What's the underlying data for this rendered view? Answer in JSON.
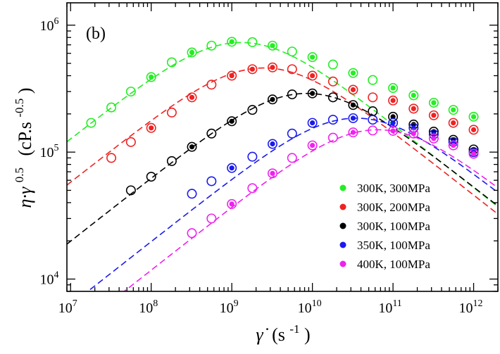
{
  "chart_data": {
    "type": "scatter",
    "title": "",
    "panel_label": "(b)",
    "xlabel": {
      "symbol": "γ̇",
      "unit_open": "(s",
      "unit_exp": "-1",
      "unit_close": ")"
    },
    "ylabel": {
      "symbol": "η·γ",
      "symbol_exp": "0.5",
      "unit_open": "(cP.s",
      "unit_exp": "-0.5",
      "unit_close": ")"
    },
    "x_scale": "log",
    "y_scale": "log",
    "xlim": [
      9000000,
      2000000000000
    ],
    "ylim": [
      8000,
      1500000
    ],
    "x_ticks": [
      {
        "base": "10",
        "exp": "7",
        "value": 10000000
      },
      {
        "base": "10",
        "exp": "8",
        "value": 100000000
      },
      {
        "base": "10",
        "exp": "9",
        "value": 1000000000
      },
      {
        "base": "10",
        "exp": "10",
        "value": 10000000000
      },
      {
        "base": "10",
        "exp": "11",
        "value": 100000000000
      },
      {
        "base": "10",
        "exp": "12",
        "value": 1000000000000
      }
    ],
    "y_ticks": [
      {
        "base": "10",
        "exp": "4",
        "value": 10000
      },
      {
        "base": "10",
        "exp": "5",
        "value": 100000
      },
      {
        "base": "10",
        "exp": "6",
        "value": 1000000
      }
    ],
    "grid": false,
    "legend_position": "bottom-right",
    "series": [
      {
        "name": "300K, 300MPa",
        "color": "#22ee22",
        "curve_peak_x": 1300000000,
        "curve_peak_y": 730000,
        "curve_slope": 0.5,
        "points": [
          {
            "x": 18000000,
            "y": 170000,
            "filled": false
          },
          {
            "x": 32000000,
            "y": 225000,
            "filled": false
          },
          {
            "x": 56000000,
            "y": 300000,
            "filled": false
          },
          {
            "x": 100000000,
            "y": 390000,
            "filled": true
          },
          {
            "x": 180000000,
            "y": 510000,
            "filled": false
          },
          {
            "x": 320000000,
            "y": 610000,
            "filled": true
          },
          {
            "x": 560000000,
            "y": 690000,
            "filled": false
          },
          {
            "x": 1000000000,
            "y": 740000,
            "filled": true
          },
          {
            "x": 1800000000,
            "y": 735000,
            "filled": false
          },
          {
            "x": 3200000000,
            "y": 690000,
            "filled": true
          },
          {
            "x": 5600000000,
            "y": 620000,
            "filled": false
          },
          {
            "x": 10000000000,
            "y": 560000,
            "filled": true
          },
          {
            "x": 18000000000,
            "y": 490000,
            "filled": false
          },
          {
            "x": 32000000000,
            "y": 420000,
            "filled": true
          },
          {
            "x": 56000000000,
            "y": 370000,
            "filled": false
          },
          {
            "x": 100000000000,
            "y": 320000,
            "filled": true
          },
          {
            "x": 180000000000,
            "y": 280000,
            "filled": true
          },
          {
            "x": 320000000000,
            "y": 245000,
            "filled": true
          },
          {
            "x": 560000000000,
            "y": 215000,
            "filled": true
          },
          {
            "x": 1000000000000,
            "y": 190000,
            "filled": true
          }
        ]
      },
      {
        "name": "300K, 200MPa",
        "color": "#ee2222",
        "curve_peak_x": 2500000000,
        "curve_peak_y": 460000,
        "curve_slope": 0.5,
        "points": [
          {
            "x": 32000000,
            "y": 90000,
            "filled": false
          },
          {
            "x": 56000000,
            "y": 120000,
            "filled": false
          },
          {
            "x": 100000000,
            "y": 155000,
            "filled": true
          },
          {
            "x": 180000000,
            "y": 205000,
            "filled": false
          },
          {
            "x": 320000000,
            "y": 270000,
            "filled": true
          },
          {
            "x": 560000000,
            "y": 340000,
            "filled": false
          },
          {
            "x": 1000000000,
            "y": 400000,
            "filled": true
          },
          {
            "x": 1800000000,
            "y": 450000,
            "filled": true
          },
          {
            "x": 3200000000,
            "y": 465000,
            "filled": true
          },
          {
            "x": 5600000000,
            "y": 450000,
            "filled": false
          },
          {
            "x": 10000000000,
            "y": 400000,
            "filled": true
          },
          {
            "x": 18000000000,
            "y": 360000,
            "filled": false
          },
          {
            "x": 32000000000,
            "y": 310000,
            "filled": true
          },
          {
            "x": 56000000000,
            "y": 270000,
            "filled": false
          },
          {
            "x": 100000000000,
            "y": 255000,
            "filled": true
          },
          {
            "x": 180000000000,
            "y": 220000,
            "filled": true
          },
          {
            "x": 320000000000,
            "y": 195000,
            "filled": true
          },
          {
            "x": 560000000000,
            "y": 170000,
            "filled": true
          },
          {
            "x": 1000000000000,
            "y": 150000,
            "filled": true
          }
        ]
      },
      {
        "name": "300K, 100MPa",
        "color": "#000000",
        "curve_peak_x": 8500000000,
        "curve_peak_y": 290000,
        "curve_slope": 0.5,
        "points": [
          {
            "x": 56000000,
            "y": 50000,
            "filled": false
          },
          {
            "x": 100000000,
            "y": 64000,
            "filled": false
          },
          {
            "x": 180000000,
            "y": 85000,
            "filled": false
          },
          {
            "x": 320000000,
            "y": 110000,
            "filled": true
          },
          {
            "x": 560000000,
            "y": 140000,
            "filled": false
          },
          {
            "x": 1000000000,
            "y": 175000,
            "filled": true
          },
          {
            "x": 1800000000,
            "y": 215000,
            "filled": false
          },
          {
            "x": 3200000000,
            "y": 260000,
            "filled": true
          },
          {
            "x": 5600000000,
            "y": 285000,
            "filled": false
          },
          {
            "x": 10000000000,
            "y": 290000,
            "filled": true
          },
          {
            "x": 18000000000,
            "y": 270000,
            "filled": false
          },
          {
            "x": 32000000000,
            "y": 235000,
            "filled": true
          },
          {
            "x": 56000000000,
            "y": 210000,
            "filled": false
          },
          {
            "x": 100000000000,
            "y": 190000,
            "filled": true
          },
          {
            "x": 180000000000,
            "y": 165000,
            "filled": true
          },
          {
            "x": 320000000000,
            "y": 145000,
            "filled": true
          },
          {
            "x": 560000000000,
            "y": 125000,
            "filled": true
          },
          {
            "x": 1000000000000,
            "y": 105000,
            "filled": true
          }
        ]
      },
      {
        "name": "350K, 100MPa",
        "color": "#1a1aee",
        "curve_peak_x": 35000000000,
        "curve_peak_y": 185000,
        "curve_slope": 0.5,
        "points": [
          {
            "x": 320000000,
            "y": 47000,
            "filled": false
          },
          {
            "x": 560000000,
            "y": 59000,
            "filled": false
          },
          {
            "x": 1000000000,
            "y": 75000,
            "filled": true
          },
          {
            "x": 1800000000,
            "y": 92000,
            "filled": false
          },
          {
            "x": 3200000000,
            "y": 116000,
            "filled": true
          },
          {
            "x": 5600000000,
            "y": 140000,
            "filled": false
          },
          {
            "x": 10000000000,
            "y": 170000,
            "filled": true
          },
          {
            "x": 18000000000,
            "y": 180000,
            "filled": false
          },
          {
            "x": 32000000000,
            "y": 185000,
            "filled": true
          },
          {
            "x": 56000000000,
            "y": 180000,
            "filled": false
          },
          {
            "x": 100000000000,
            "y": 170000,
            "filled": true
          },
          {
            "x": 180000000000,
            "y": 155000,
            "filled": true
          },
          {
            "x": 320000000000,
            "y": 138000,
            "filled": true
          },
          {
            "x": 560000000000,
            "y": 120000,
            "filled": true
          },
          {
            "x": 1000000000000,
            "y": 100000,
            "filled": true
          }
        ]
      },
      {
        "name": "400K, 100MPa",
        "color": "#ee22ee",
        "curve_peak_x": 65000000000,
        "curve_peak_y": 150000,
        "curve_slope": 0.5,
        "points": [
          {
            "x": 320000000,
            "y": 23000,
            "filled": false
          },
          {
            "x": 560000000,
            "y": 30000,
            "filled": false
          },
          {
            "x": 1000000000,
            "y": 39000,
            "filled": true
          },
          {
            "x": 1800000000,
            "y": 52000,
            "filled": false
          },
          {
            "x": 3200000000,
            "y": 68000,
            "filled": true
          },
          {
            "x": 5600000000,
            "y": 90000,
            "filled": false
          },
          {
            "x": 10000000000,
            "y": 113000,
            "filled": true
          },
          {
            "x": 18000000000,
            "y": 130000,
            "filled": false
          },
          {
            "x": 32000000000,
            "y": 143000,
            "filled": true
          },
          {
            "x": 56000000000,
            "y": 148000,
            "filled": false
          },
          {
            "x": 100000000000,
            "y": 147000,
            "filled": true
          },
          {
            "x": 180000000000,
            "y": 140000,
            "filled": true
          },
          {
            "x": 320000000000,
            "y": 128000,
            "filled": true
          },
          {
            "x": 560000000000,
            "y": 113000,
            "filled": true
          },
          {
            "x": 1000000000000,
            "y": 97000,
            "filled": true
          }
        ]
      }
    ]
  }
}
